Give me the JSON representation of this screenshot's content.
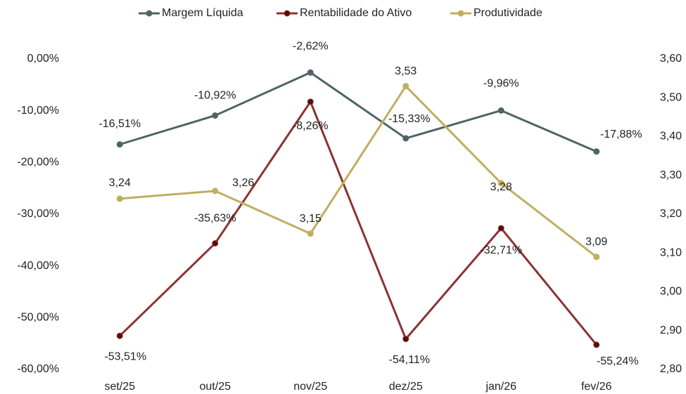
{
  "chart_data": {
    "type": "line",
    "categories": [
      "set/25",
      "out/25",
      "nov/25",
      "dez/25",
      "jan/26",
      "fev/26"
    ],
    "series": [
      {
        "name": "Margem Líquida",
        "color": "#4d6564",
        "values": [
          -16.51,
          -10.92,
          -2.62,
          -15.33,
          -9.96,
          -17.88
        ],
        "value_labels": [
          "-16,51%",
          "-10,92%",
          "-2,62%",
          "-15,33%",
          "-9,96%",
          "-17,88%"
        ]
      },
      {
        "name": "Rentabilidade do Ativo",
        "color": "#8b3232",
        "values": [
          -53.51,
          -35.63,
          -8.26,
          -54.11,
          -32.71,
          -55.24
        ],
        "value_labels": [
          "-53,51%",
          "-35,63%",
          "-8,26%",
          "-54,11%",
          "-32,71%",
          "-55,24%"
        ]
      },
      {
        "name": "Produtividade",
        "color": "#bfae62",
        "axis": "y2",
        "values": [
          3.24,
          3.26,
          3.15,
          3.53,
          3.28,
          3.09
        ],
        "value_labels": [
          "3,24",
          "3,26",
          "3,15",
          "3,53",
          "3,28",
          "3,09"
        ]
      }
    ],
    "ylim": [
      -60,
      0
    ],
    "yticks": [
      {
        "value": 0,
        "label": "0,00%"
      },
      {
        "value": -10,
        "label": "-10,00%"
      },
      {
        "value": -20,
        "label": "-20,00%"
      },
      {
        "value": -30,
        "label": "-30,00%"
      },
      {
        "value": -40,
        "label": "-40,00%"
      },
      {
        "value": -50,
        "label": "-50,00%"
      },
      {
        "value": -60,
        "label": "-60,00%"
      }
    ],
    "y2lim": [
      2.8,
      3.6
    ],
    "y2ticks": [
      {
        "value": 3.6,
        "label": "3,60"
      },
      {
        "value": 3.5,
        "label": "3,50"
      },
      {
        "value": 3.4,
        "label": "3,40"
      },
      {
        "value": 3.3,
        "label": "3,30"
      },
      {
        "value": 3.2,
        "label": "3,20"
      },
      {
        "value": 3.1,
        "label": "3,10"
      },
      {
        "value": 3.0,
        "label": "3,00"
      },
      {
        "value": 2.9,
        "label": "2,90"
      },
      {
        "value": 2.8,
        "label": "2,80"
      }
    ],
    "legend": "top"
  }
}
